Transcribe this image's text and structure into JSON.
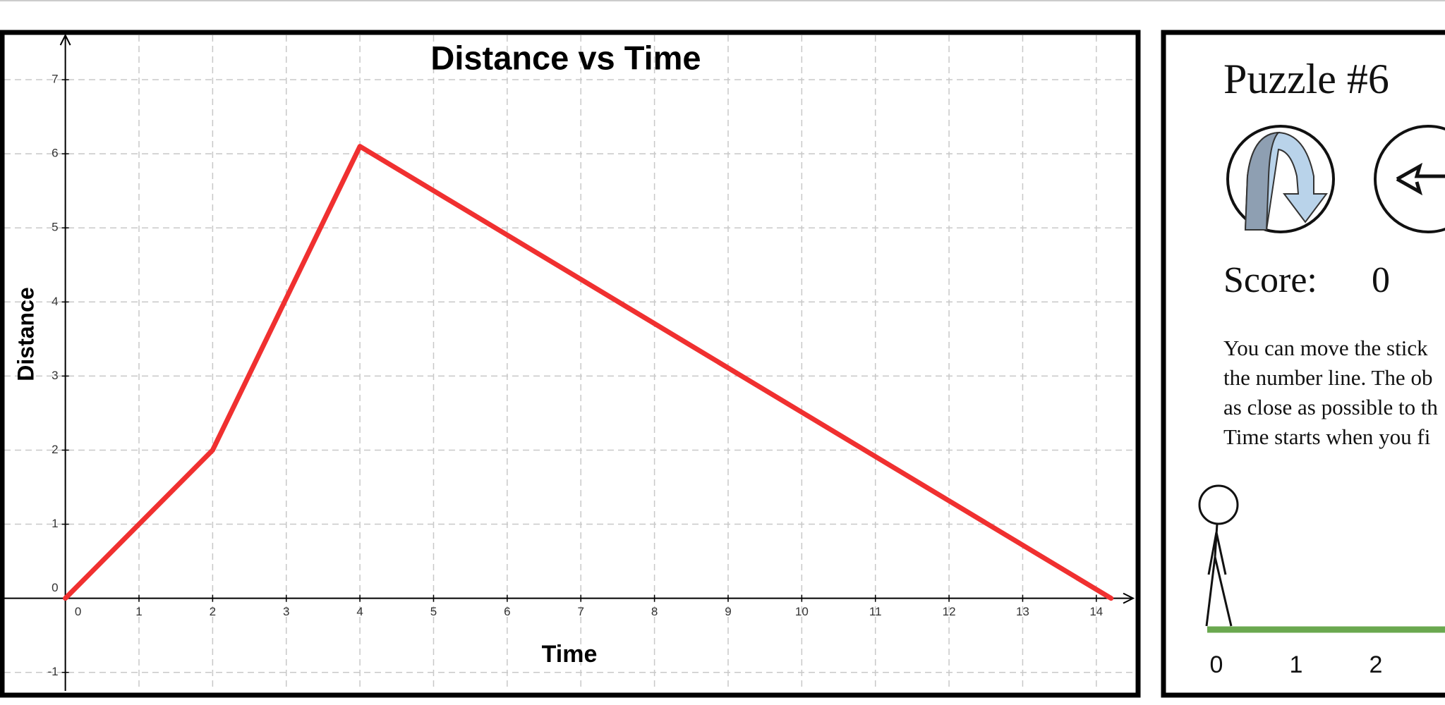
{
  "chart_data": {
    "type": "line",
    "title": "Distance vs Time",
    "x_label": "Time",
    "y_label": "Distance",
    "x": [
      0,
      2,
      4,
      14.2
    ],
    "values": [
      0,
      2,
      6.1,
      0
    ],
    "color": "#f03030",
    "xlim": [
      -0.83,
      14.5
    ],
    "ylim": [
      -1.25,
      7.6
    ],
    "xticks": [
      0,
      1,
      2,
      3,
      4,
      5,
      6,
      7,
      8,
      9,
      10,
      11,
      12,
      13,
      14
    ],
    "yticks": [
      -1,
      0,
      1,
      2,
      3,
      4,
      5,
      6,
      7
    ],
    "grid": true
  },
  "puzzle": {
    "title": "Puzzle #6",
    "score_label": "Score:",
    "score": 0,
    "instructions": [
      "You can move the stick",
      "the number line. The ob",
      "as close as possible to th",
      "Time starts when you fi"
    ],
    "number_line": [
      0,
      1,
      2
    ]
  }
}
